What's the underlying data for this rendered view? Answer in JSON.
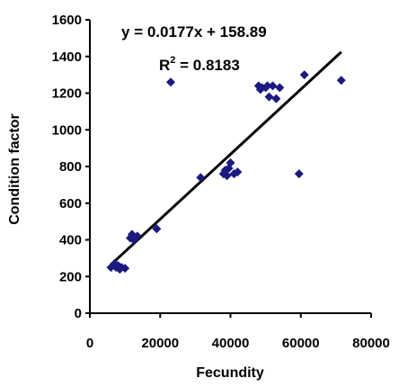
{
  "chart_data": {
    "type": "scatter",
    "xlabel": "Fecundity",
    "ylabel": "Condition factor",
    "xlim": [
      0,
      80000
    ],
    "ylim": [
      0,
      1600
    ],
    "xticks": [
      "0",
      "20000",
      "40000",
      "60000",
      "80000"
    ],
    "yticks": [
      "0",
      "200",
      "400",
      "600",
      "800",
      "1000",
      "1200",
      "1400",
      "1600"
    ],
    "grid": false,
    "legend": "none",
    "annotations": {
      "equation": "y = 0.0177x + 158.89",
      "r2_prefix": "R",
      "r2_sup": "2",
      "r2_value": " = 0.8183"
    },
    "trendline": {
      "slope": 0.0177,
      "intercept": 158.89,
      "x_start": 6000,
      "x_end": 71500
    },
    "marker_color": "#1a1a80",
    "series": [
      {
        "x": [
          6000,
          7000,
          7500,
          8000,
          8500,
          9000,
          10000,
          11500,
          12000,
          12500,
          13500,
          19000,
          23000,
          31500,
          38000,
          38500,
          39000,
          39500,
          40000,
          41000,
          42000,
          48000,
          48500,
          49000,
          50000,
          50500,
          51000,
          52000,
          53000,
          54000,
          59500,
          61000,
          71500
        ],
        "y": [
          250,
          270,
          250,
          260,
          240,
          250,
          245,
          410,
          430,
          400,
          420,
          460,
          1260,
          740,
          760,
          780,
          750,
          790,
          820,
          760,
          770,
          1240,
          1220,
          1230,
          1230,
          1240,
          1180,
          1240,
          1170,
          1230,
          760,
          1300,
          1270
        ]
      }
    ]
  }
}
